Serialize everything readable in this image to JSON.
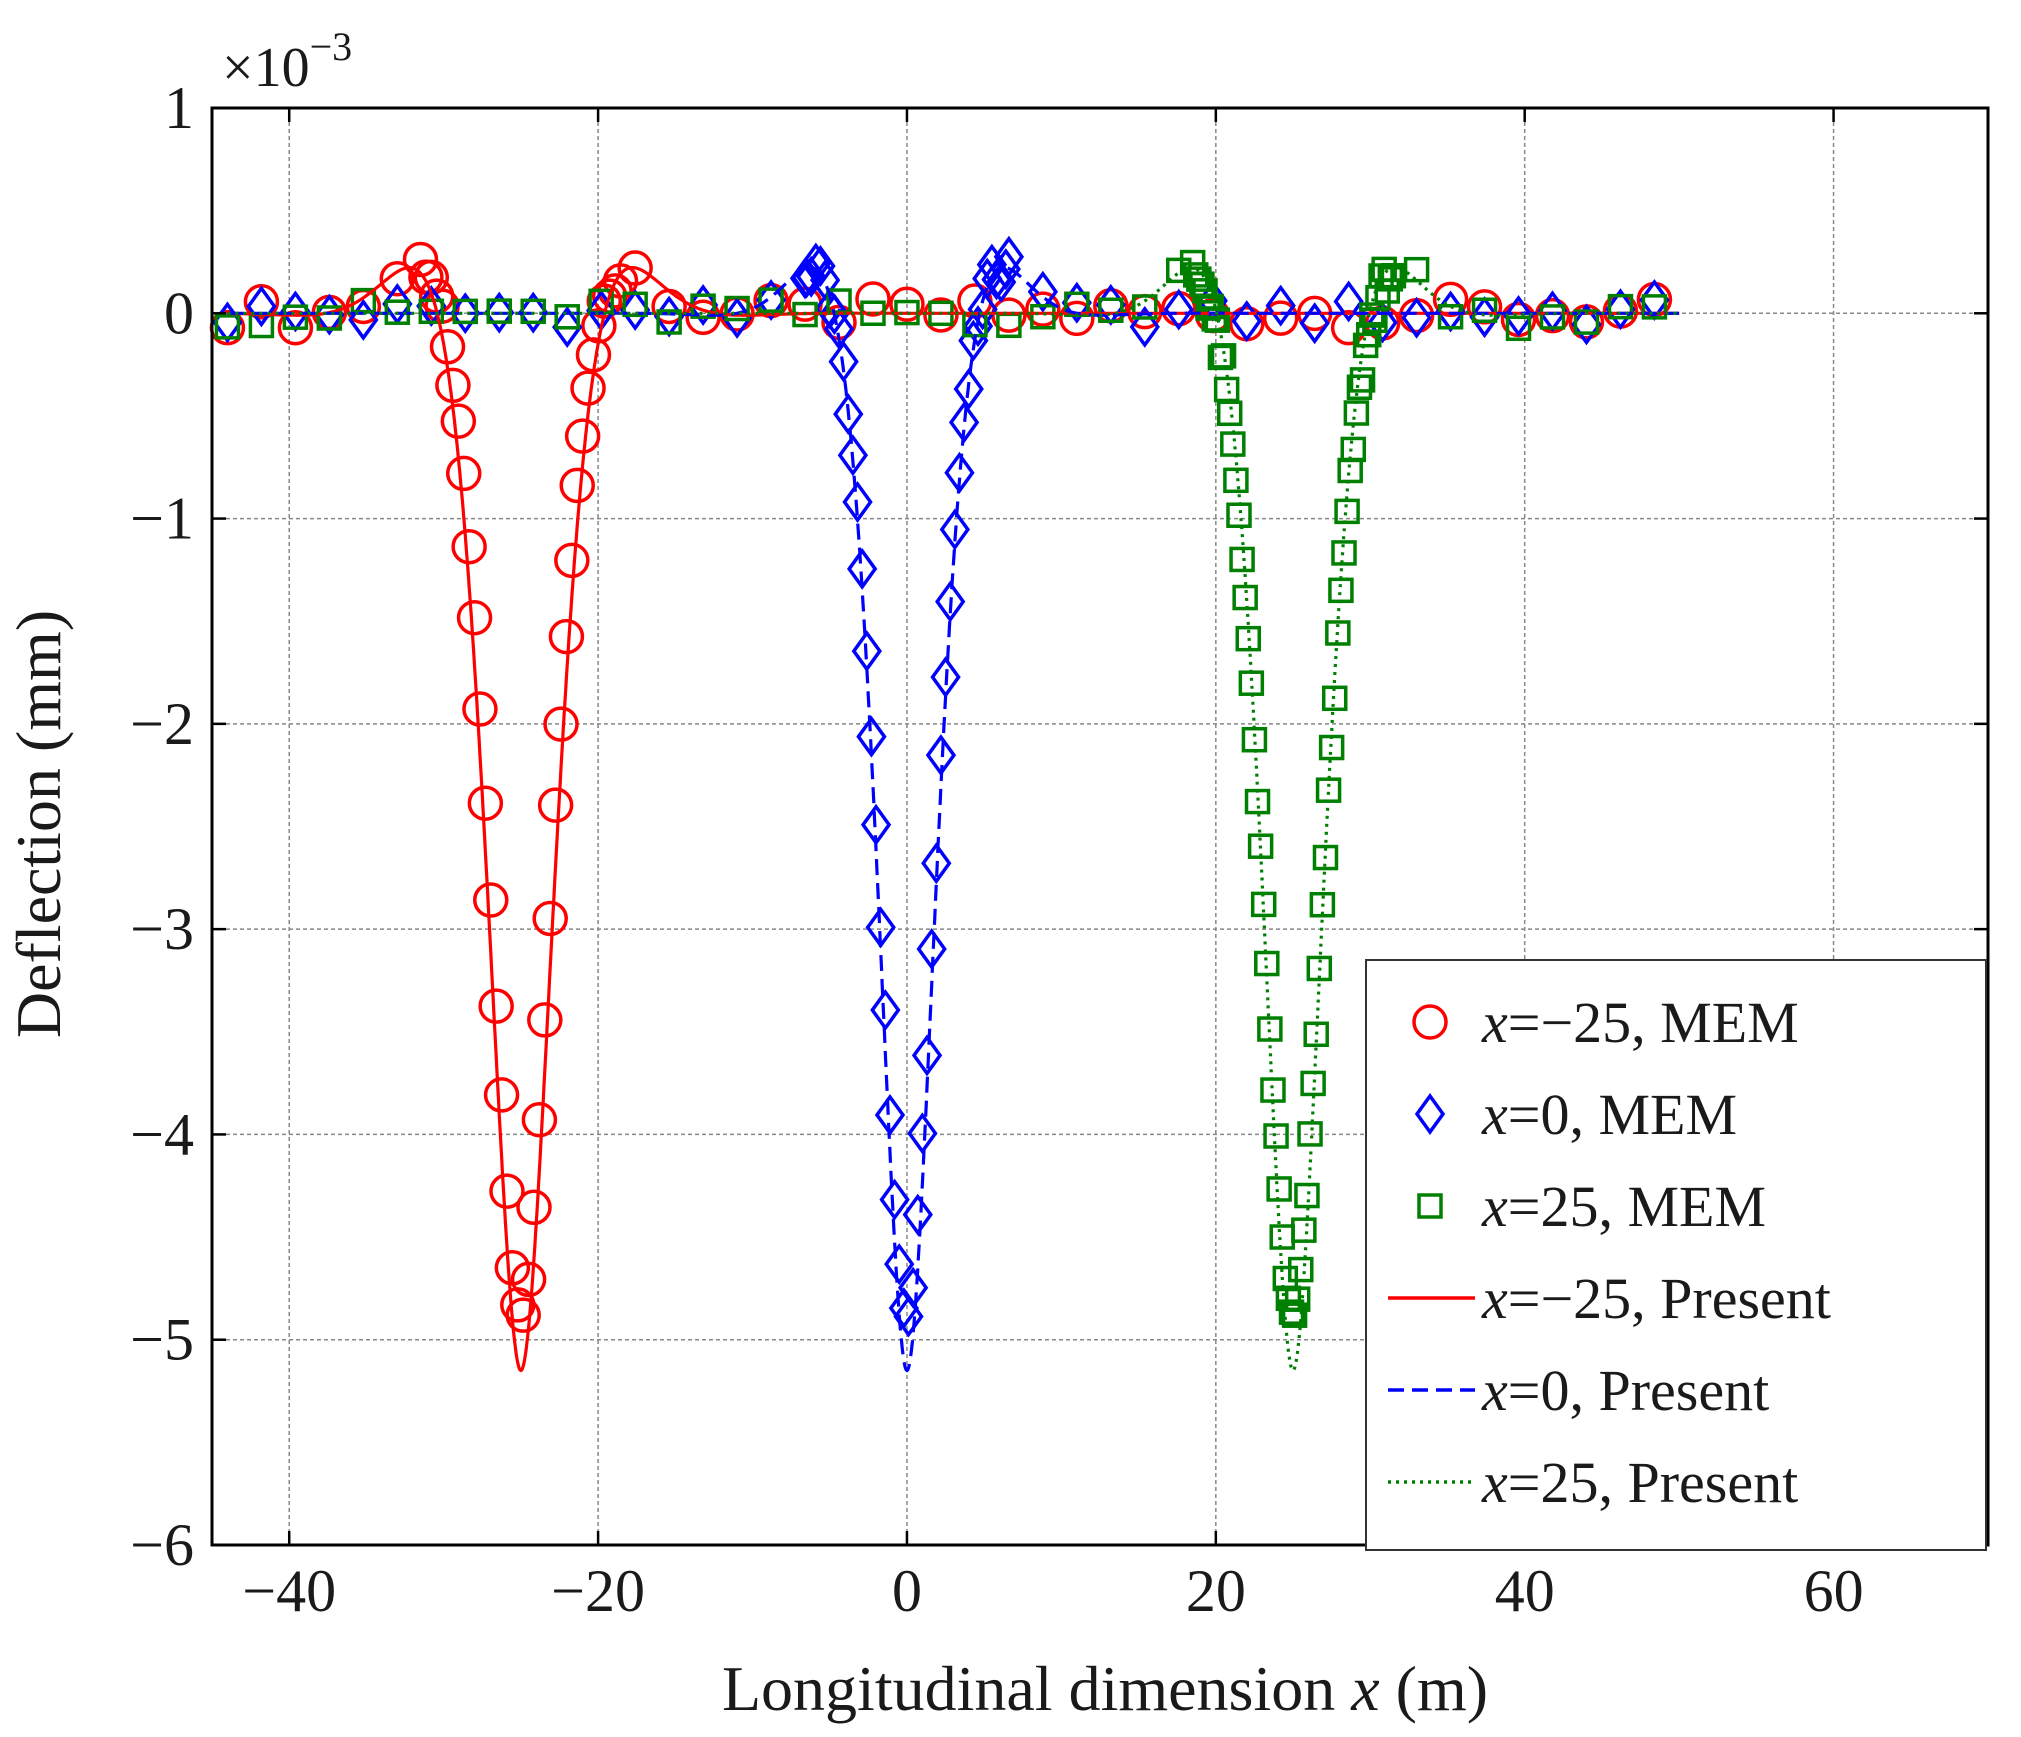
{
  "chart_data": {
    "type": "scatter",
    "title": "",
    "xlabel": "Longitudinal dimension",
    "xlabel_var": "x",
    "xlabel_unit": "(m)",
    "ylabel": "Deflection (mm)",
    "y_exponent": "×10",
    "y_exponent_power": "−3",
    "xlim": [
      -45,
      70
    ],
    "ylim": [
      -6,
      1
    ],
    "xticks": [
      -40,
      -20,
      0,
      20,
      40,
      60
    ],
    "yticks": [
      1,
      0,
      -1,
      -2,
      -3,
      -4,
      -5,
      -6
    ],
    "xtick_labels": [
      "−40",
      "−20",
      "0",
      "20",
      "40",
      "60"
    ],
    "ytick_labels": [
      "1",
      "0",
      "−1",
      "−2",
      "−3",
      "−4",
      "−5",
      "−6"
    ],
    "grid": true,
    "legend_position": "lower-right",
    "series": [
      {
        "name": "x=−25, MEM",
        "var": "x",
        "rest": "=−25, MEM",
        "kind": "marker",
        "marker": "circle",
        "color": "#ff0000",
        "center": -25,
        "depth": 4.9,
        "width": 2.2,
        "min_dx": 0.35
      },
      {
        "name": "x=0, MEM",
        "var": "x",
        "rest": "=0, MEM",
        "kind": "marker",
        "marker": "diamond",
        "color": "#0000ff",
        "center": 0,
        "depth": 4.9,
        "width": 2.0,
        "min_dx": 0.3
      },
      {
        "name": "x=25, MEM",
        "var": "x",
        "rest": "=25, MEM",
        "kind": "marker",
        "marker": "square",
        "color": "#008000",
        "center": 25,
        "depth": 4.9,
        "width": 2.2,
        "min_dx": 0.2
      },
      {
        "name": "x=−25, Present",
        "var": "x",
        "rest": "=−25, Present",
        "kind": "line",
        "dash": "solid",
        "color": "#ff0000",
        "center": -25,
        "depth": 5.15,
        "width": 2.3
      },
      {
        "name": "x=0, Present",
        "var": "x",
        "rest": "=0, Present",
        "kind": "line",
        "dash": "dashed",
        "color": "#0000ff",
        "center": 0,
        "depth": 5.15,
        "width": 2.0
      },
      {
        "name": "x=25, Present",
        "var": "x",
        "rest": "=25, Present",
        "kind": "line",
        "dash": "dotted",
        "color": "#008000",
        "center": 25,
        "depth": 5.15,
        "width": 2.1
      }
    ]
  }
}
